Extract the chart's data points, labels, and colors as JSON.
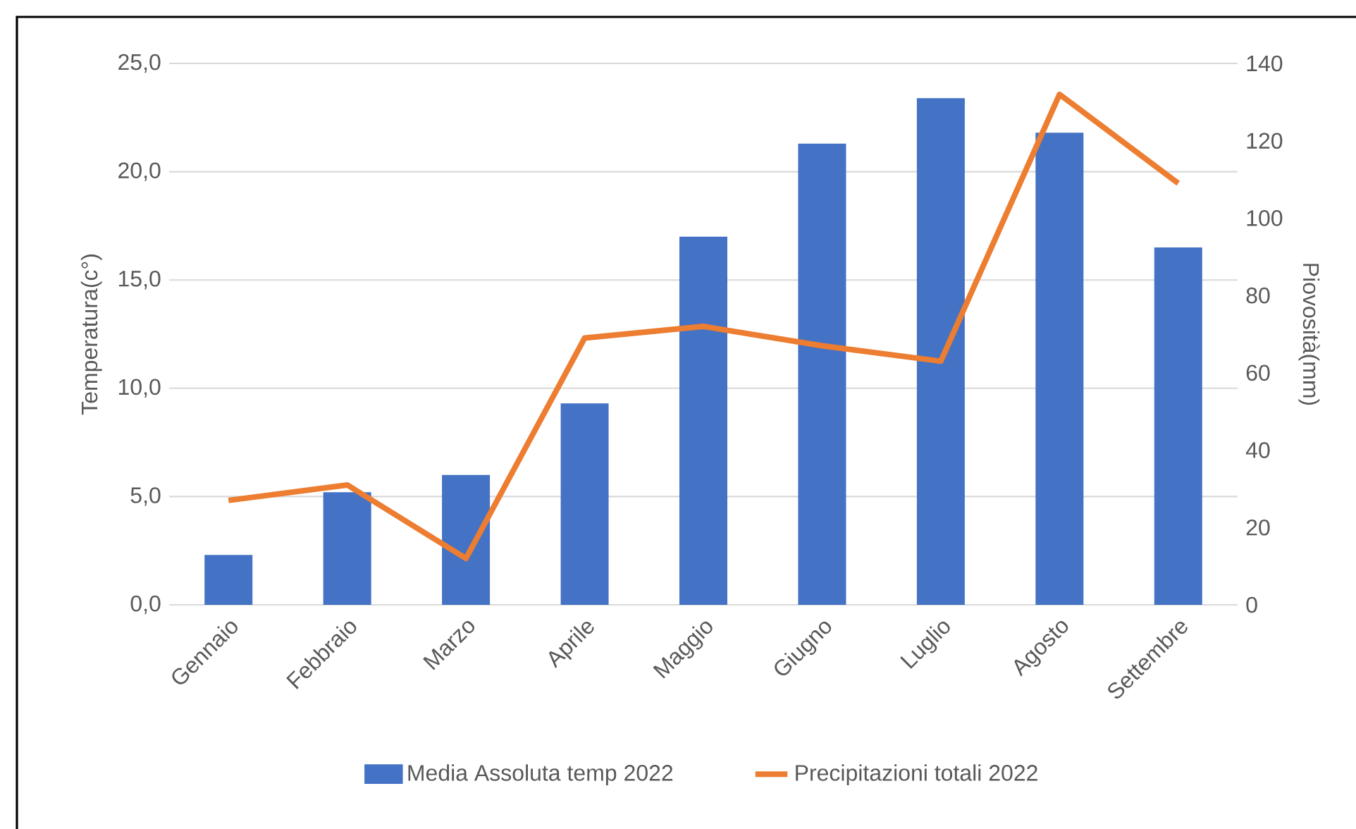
{
  "chart_data": {
    "type": "bar",
    "categories": [
      "Gennaio",
      "Febbraio",
      "Marzo",
      "Aprile",
      "Maggio",
      "Giugno",
      "Luglio",
      "Agosto",
      "Settembre"
    ],
    "series": [
      {
        "name": "Media Assoluta temp 2022",
        "color": "#4472c4",
        "values": [
          2.3,
          5.2,
          6.0,
          9.3,
          17.0,
          21.3,
          23.4,
          21.8,
          16.5
        ]
      },
      {
        "name": "Precipitazioni totali 2022",
        "type": "line",
        "axis": "y2",
        "color": "#ed7d31",
        "values": [
          27,
          31,
          12,
          69,
          72,
          67,
          63,
          132,
          109
        ]
      }
    ],
    "ylabel": "Temperatura(c°)",
    "y2label": "Piovosità(mm)",
    "ylim": [
      0,
      25
    ],
    "yticks": [
      {
        "value": 0,
        "label": "0,0"
      },
      {
        "value": 5,
        "label": "5,0"
      },
      {
        "value": 10,
        "label": "10,0"
      },
      {
        "value": 15,
        "label": "15,0"
      },
      {
        "value": 20,
        "label": "20,0"
      },
      {
        "value": 25,
        "label": "25,0"
      }
    ],
    "y2lim": [
      0,
      140
    ],
    "y2ticks": [
      0,
      20,
      40,
      60,
      80,
      100,
      120,
      140
    ],
    "grid": "y",
    "legend": "bottom",
    "marker": "none",
    "line_style": "solid"
  }
}
